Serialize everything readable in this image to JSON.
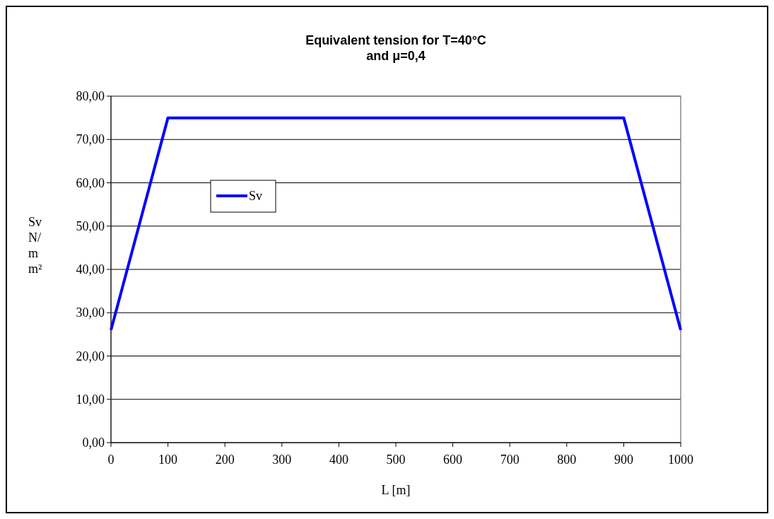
{
  "chart_data": {
    "type": "line",
    "title": "Equivalent tension for T=40°C\nand μ=0,4",
    "xlabel": "L [m]",
    "ylabel": "Sv N/mm²",
    "x": [
      0,
      100,
      900,
      1000
    ],
    "series": [
      {
        "name": "Sv",
        "color": "#0000ff",
        "values": [
          26,
          75,
          75,
          26
        ]
      }
    ],
    "xlim": [
      0,
      1000
    ],
    "xticks": [
      0,
      100,
      200,
      300,
      400,
      500,
      600,
      700,
      800,
      900,
      1000
    ],
    "ylim": [
      0,
      80
    ],
    "yticks": [
      {
        "value": 0,
        "label": "0,00"
      },
      {
        "value": 10,
        "label": "10,00"
      },
      {
        "value": 20,
        "label": "20,00"
      },
      {
        "value": 30,
        "label": "30,00"
      },
      {
        "value": 40,
        "label": "40,00"
      },
      {
        "value": 50,
        "label": "50,00"
      },
      {
        "value": 60,
        "label": "60,00"
      },
      {
        "value": 70,
        "label": "70,00"
      },
      {
        "value": 80,
        "label": "80,00"
      }
    ],
    "grid": "y",
    "legend": "left",
    "marker": "none",
    "line_style": "solid"
  }
}
